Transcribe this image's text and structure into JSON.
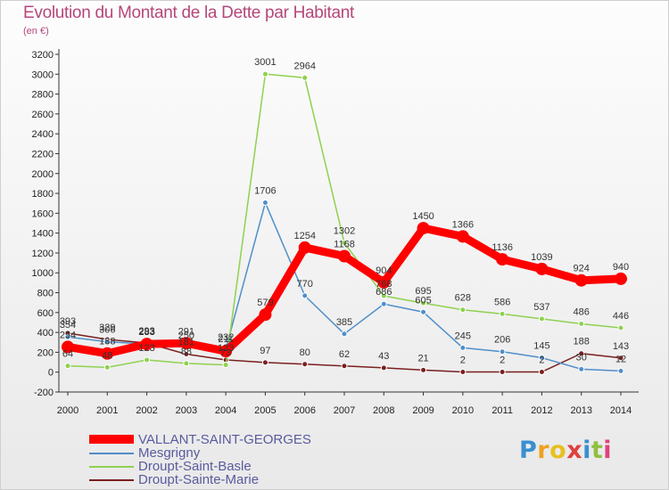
{
  "title": "Evolution du Montant de la Dette par Habitant",
  "subtitle": "(en €)",
  "logo": "Proxiti",
  "chart_data": {
    "type": "line",
    "x": [
      "2000",
      "2001",
      "2002",
      "2003",
      "2004",
      "2005",
      "2006",
      "2007",
      "2008",
      "2009",
      "2010",
      "2011",
      "2012",
      "2013",
      "2014"
    ],
    "ylim": [
      -200,
      3200
    ],
    "yticks": [
      -200,
      0,
      200,
      400,
      600,
      800,
      1000,
      1200,
      1400,
      1600,
      1800,
      2000,
      2200,
      2400,
      2600,
      2800,
      3000,
      3200
    ],
    "grid": false,
    "legend_position": "bottom-left",
    "series": [
      {
        "name": "VALLANT-SAINT-GEORGES",
        "color": "#ff0000",
        "values": [
          254,
          188,
          283,
          291,
          211,
          579,
          1254,
          1168,
          904,
          1450,
          1366,
          1136,
          1039,
          924,
          940
        ]
      },
      {
        "name": "Mesgrigny",
        "color": "#4f8fc9",
        "values": [
          354,
          306,
          283,
          250,
          232,
          1706,
          770,
          385,
          686,
          605,
          245,
          206,
          145,
          30,
          12
        ]
      },
      {
        "name": "Droupt-Saint-Basle",
        "color": "#8fd14f",
        "values": [
          64,
          48,
          123,
          88,
          73,
          3001,
          2964,
          1302,
          768,
          695,
          628,
          586,
          537,
          486,
          446
        ]
      },
      {
        "name": "Droupt-Sainte-Marie",
        "color": "#7a1f1f",
        "values": [
          393,
          329,
          293,
          181,
          123,
          97,
          80,
          62,
          43,
          21,
          2,
          2,
          2,
          188,
          143
        ]
      }
    ]
  }
}
